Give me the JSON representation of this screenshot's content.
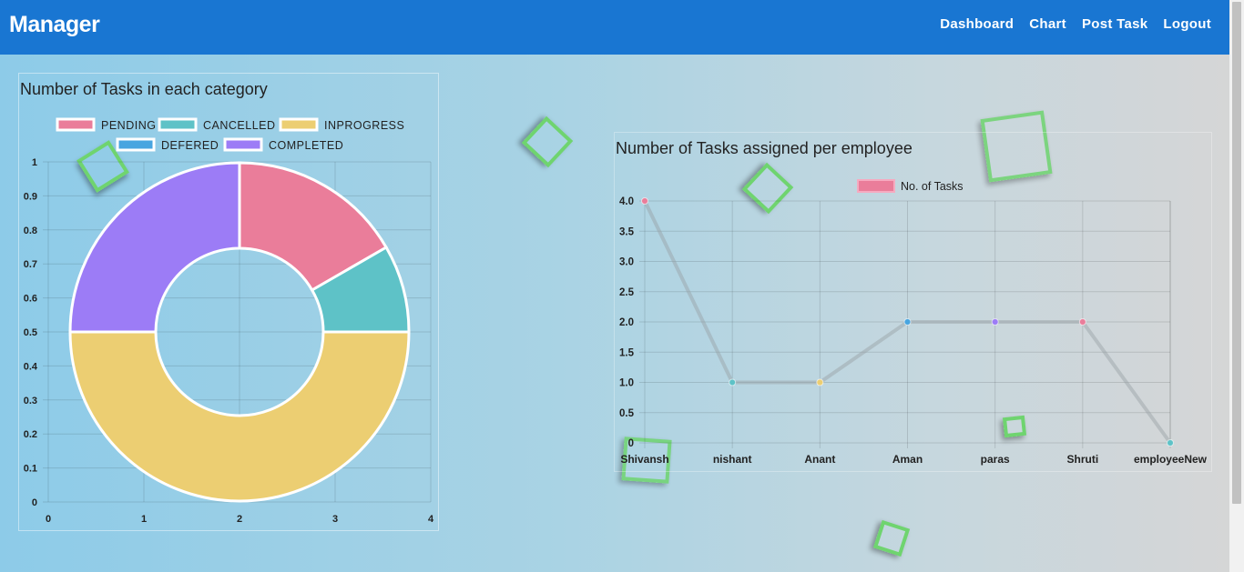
{
  "header": {
    "brand": "Manager",
    "links": [
      "Dashboard",
      "Chart",
      "Post Task",
      "Logout"
    ]
  },
  "colors": {
    "navbar": "#1976d2",
    "pending": "#ea7d9a",
    "cancelled": "#5ec2c7",
    "inprogress": "#ecce72",
    "defered": "#48a5e0",
    "completed": "#9c7cf6"
  },
  "chart_data": [
    {
      "type": "pie",
      "title": "Number of Tasks in each category",
      "labels": [
        "PENDING",
        "CANCELLED",
        "INPROGRESS",
        "DEFERED",
        "COMPLETED"
      ],
      "values": [
        1,
        0.5,
        3,
        0,
        1.5
      ],
      "colors": [
        "#ea7d9a",
        "#5ec2c7",
        "#ecce72",
        "#48a5e0",
        "#9c7cf6"
      ],
      "legend": "top",
      "x_ticks": [
        "0",
        "1",
        "2",
        "3",
        "4"
      ],
      "y_ticks": [
        "1",
        "0.9",
        "0.8",
        "0.7",
        "0.6",
        "0.5",
        "0.4",
        "0.3",
        "0.2",
        "0.1",
        "0"
      ],
      "grid": true
    },
    {
      "type": "line",
      "title": "Number of Tasks assigned per employee",
      "categories": [
        "Shivansh",
        "nishant",
        "Anant",
        "Aman",
        "paras",
        "Shruti",
        "employeeNew"
      ],
      "series": [
        {
          "name": "No. of Tasks",
          "values": [
            4,
            1,
            1,
            2,
            2,
            2,
            0
          ]
        }
      ],
      "point_colors": [
        "#ea7d9a",
        "#5ec2c7",
        "#ecce72",
        "#48a5e0",
        "#9c7cf6",
        "#ea7d9a",
        "#5ec2c7"
      ],
      "y_ticks": [
        "4.0",
        "3.5",
        "3.0",
        "2.5",
        "2.0",
        "1.5",
        "1.0",
        "0.5",
        "0"
      ],
      "ylim": [
        0,
        4
      ],
      "legend": "top",
      "grid": true
    }
  ]
}
